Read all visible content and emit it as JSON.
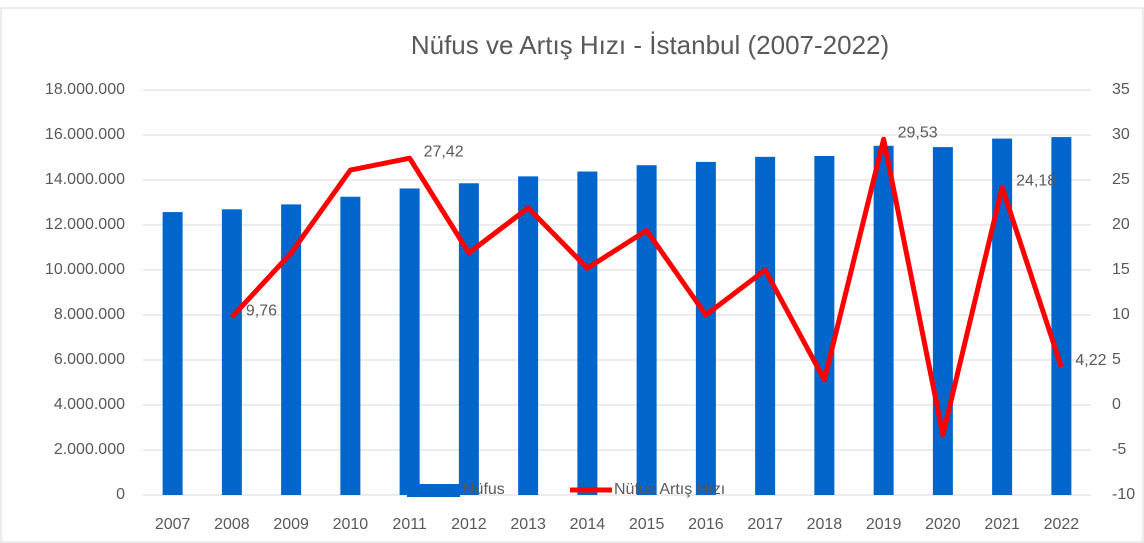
{
  "chart_data": {
    "type": "bar_line",
    "title": "Nüfus ve Artış Hızı - İstanbul (2007-2022)",
    "categories": [
      "2007",
      "2008",
      "2009",
      "2010",
      "2011",
      "2012",
      "2013",
      "2014",
      "2015",
      "2016",
      "2017",
      "2018",
      "2019",
      "2020",
      "2021",
      "2022"
    ],
    "series": [
      {
        "name": "Nüfus",
        "type": "bar",
        "color": "#0066cc",
        "values": [
          12573836,
          12697164,
          12915158,
          13255685,
          13624240,
          13854740,
          14160467,
          14377018,
          14657434,
          14804116,
          15029231,
          15067724,
          15519267,
          15462452,
          15840900,
          15907951
        ]
      },
      {
        "name": "Nüfus Artış Hızı",
        "type": "line",
        "axis": "y2",
        "color": "#ff0000",
        "values": [
          null,
          9.76,
          16.9,
          26.1,
          27.42,
          16.9,
          21.9,
          15.2,
          19.4,
          10.0,
          15.0,
          2.8,
          29.53,
          -3.3,
          24.18,
          4.22
        ],
        "value_labels": [
          null,
          "9,76",
          null,
          null,
          "27,42",
          null,
          null,
          null,
          null,
          null,
          null,
          null,
          "29,53",
          null,
          "24,18",
          "4,22"
        ]
      }
    ],
    "ylim": [
      0,
      18000000
    ],
    "yticks": [
      0,
      {
        "value": 2000000,
        "label": "2.000.000"
      },
      {
        "value": 4000000,
        "label": "4.000.000"
      },
      {
        "value": 6000000,
        "label": "6.000.000"
      },
      {
        "value": 8000000,
        "label": "8.000.000"
      },
      {
        "value": 10000000,
        "label": "10.000.000"
      },
      {
        "value": 12000000,
        "label": "12.000.000"
      },
      {
        "value": 14000000,
        "label": "14.000.000"
      },
      {
        "value": 16000000,
        "label": "16.000.000"
      },
      {
        "value": 18000000,
        "label": "18.000.000"
      }
    ],
    "y2lim": [
      -10,
      35
    ],
    "y2ticks": [
      -10,
      -5,
      0,
      5,
      10,
      15,
      20,
      25,
      30,
      35
    ],
    "grid": true,
    "legend": "bottom"
  }
}
